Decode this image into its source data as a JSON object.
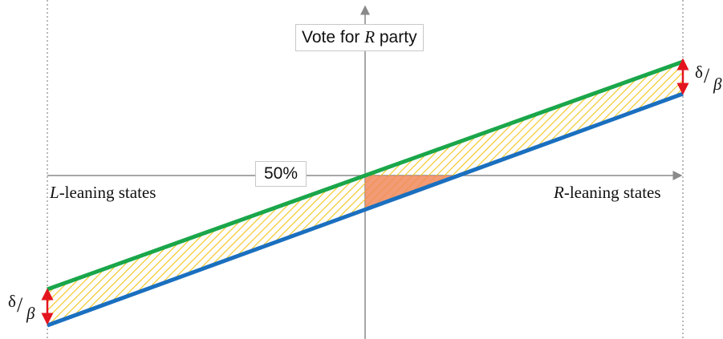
{
  "diagram": {
    "y_axis_label": {
      "text": "Vote for ",
      "var": "R",
      "suffix": " party"
    },
    "threshold_label": "50%",
    "left_label": {
      "var": "L",
      "suffix": "-leaning states"
    },
    "right_label": {
      "var": "R",
      "suffix": "-leaning states"
    },
    "gap_label": {
      "numerator": "δ",
      "slash": "/",
      "denominator": "β"
    },
    "colors": {
      "upper_line": "#1aa64a",
      "lower_line": "#1a6fbf",
      "hatch": "#f2c418",
      "highlight": "#f08a5d",
      "arrow": "#e3141e",
      "axis": "#8a8a8a"
    }
  }
}
